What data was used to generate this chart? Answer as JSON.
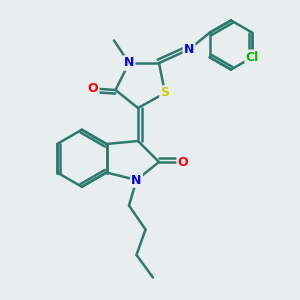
{
  "background_color": "#e8edf0",
  "line_color": "#2d7a6e",
  "bond_width": 1.8,
  "atom_colors": {
    "N": "#0000ff",
    "O": "#ff0000",
    "S": "#cccc00",
    "Cl": "#00bb00",
    "C": "#000000"
  },
  "font_size": 9,
  "figsize": [
    3.0,
    3.0
  ],
  "dpi": 100
}
